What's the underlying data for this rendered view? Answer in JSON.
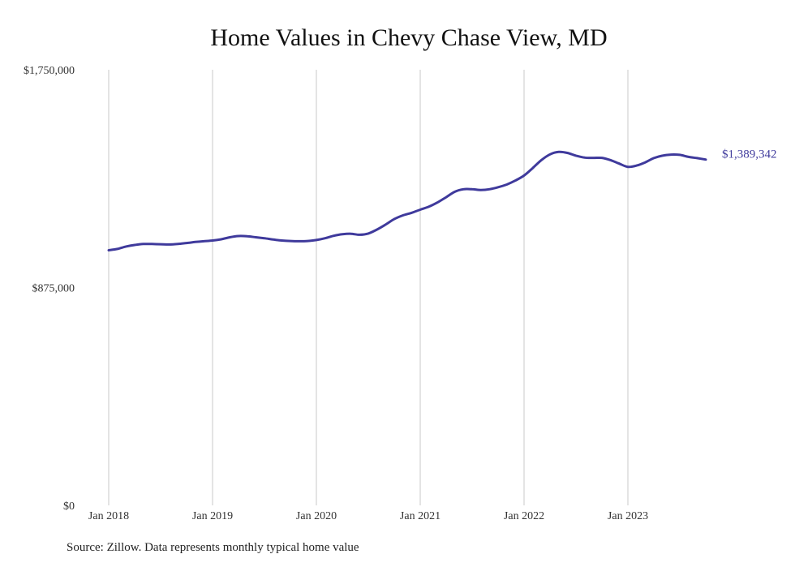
{
  "chart_data": {
    "type": "line",
    "title": "Home Values in Chevy Chase View, MD",
    "source": "Source: Zillow. Data represents monthly typical home value",
    "xlabel": "",
    "ylabel": "",
    "ylim": [
      0,
      1750000
    ],
    "y_ticks": [
      0,
      875000,
      1750000
    ],
    "y_tick_labels": [
      "$0",
      "$875,000",
      "$1,750,000"
    ],
    "x_ticks": [
      "2018-01",
      "2019-01",
      "2020-01",
      "2021-01",
      "2022-01",
      "2023-01"
    ],
    "x_tick_labels": [
      "Jan 2018",
      "Jan 2019",
      "Jan 2020",
      "Jan 2021",
      "Jan 2022",
      "Jan 2023"
    ],
    "grid": "vertical",
    "line_color": "#3f3a9c",
    "end_label": "$1,389,342",
    "series": [
      {
        "x": [
          "2018-01",
          "2018-02",
          "2018-03",
          "2018-04",
          "2018-05",
          "2018-06",
          "2018-07",
          "2018-08",
          "2018-09",
          "2018-10",
          "2018-11",
          "2018-12",
          "2019-01",
          "2019-02",
          "2019-03",
          "2019-04",
          "2019-05",
          "2019-06",
          "2019-07",
          "2019-08",
          "2019-09",
          "2019-10",
          "2019-11",
          "2019-12",
          "2020-01",
          "2020-02",
          "2020-03",
          "2020-04",
          "2020-05",
          "2020-06",
          "2020-07",
          "2020-08",
          "2020-09",
          "2020-10",
          "2020-11",
          "2020-12",
          "2021-01",
          "2021-02",
          "2021-03",
          "2021-04",
          "2021-05",
          "2021-06",
          "2021-07",
          "2021-08",
          "2021-09",
          "2021-10",
          "2021-11",
          "2021-12",
          "2022-01",
          "2022-02",
          "2022-03",
          "2022-04",
          "2022-05",
          "2022-06",
          "2022-07",
          "2022-08",
          "2022-09",
          "2022-10",
          "2022-11",
          "2022-12",
          "2023-01",
          "2023-02",
          "2023-03",
          "2023-04",
          "2023-05",
          "2023-06",
          "2023-07",
          "2023-08",
          "2023-09",
          "2023-10"
        ],
        "values": [
          1025000,
          1030000,
          1040000,
          1046000,
          1050000,
          1050000,
          1049000,
          1048000,
          1050000,
          1054000,
          1058000,
          1061000,
          1064000,
          1069000,
          1077000,
          1082000,
          1081000,
          1077000,
          1073000,
          1068000,
          1064000,
          1062000,
          1061000,
          1062000,
          1066000,
          1073000,
          1083000,
          1089000,
          1091000,
          1087000,
          1092000,
          1108000,
          1128000,
          1150000,
          1165000,
          1175000,
          1188000,
          1200000,
          1217000,
          1238000,
          1260000,
          1270000,
          1270000,
          1267000,
          1270000,
          1278000,
          1289000,
          1305000,
          1325000,
          1355000,
          1387000,
          1410000,
          1420000,
          1416000,
          1405000,
          1397000,
          1396000,
          1396000,
          1387000,
          1373000,
          1360000,
          1365000,
          1378000,
          1395000,
          1405000,
          1409000,
          1408000,
          1400000,
          1395000,
          1389342
        ]
      }
    ]
  }
}
